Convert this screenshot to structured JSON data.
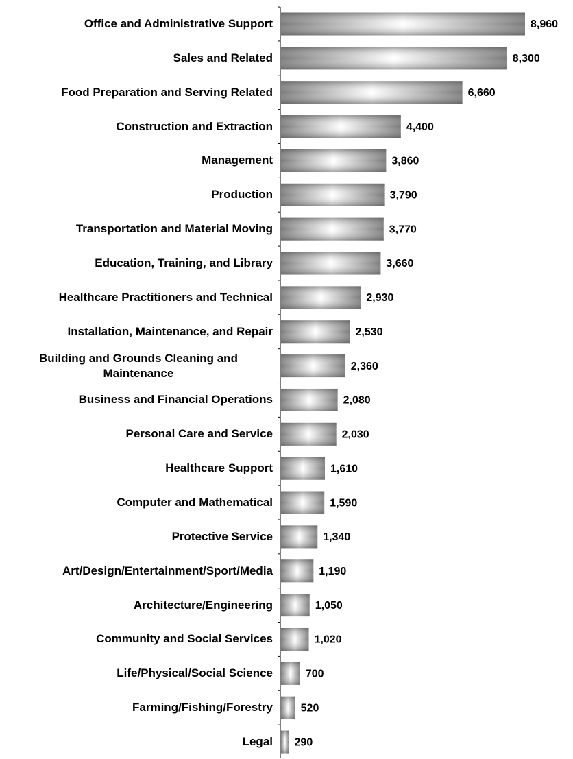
{
  "chart_data": {
    "type": "bar",
    "orientation": "horizontal",
    "categories": [
      "Office and Administrative Support",
      "Sales and Related",
      "Food Preparation and Serving Related",
      "Construction and Extraction",
      "Management",
      "Production",
      "Transportation and Material Moving",
      "Education, Training, and Library",
      "Healthcare Practitioners and Technical",
      "Installation, Maintenance, and Repair",
      "Building and Grounds Cleaning and Maintenance",
      "Business and Financial Operations",
      "Personal Care and Service",
      "Healthcare Support",
      "Computer and Mathematical",
      "Protective Service",
      "Art/Design/Entertainment/Sport/Media",
      "Architecture/Engineering",
      "Community and Social Services",
      "Life/Physical/Social Science",
      "Farming/Fishing/Forestry",
      "Legal"
    ],
    "values": [
      8960,
      8300,
      6660,
      4400,
      3860,
      3790,
      3770,
      3660,
      2930,
      2530,
      2360,
      2080,
      2030,
      1610,
      1590,
      1340,
      1190,
      1050,
      1020,
      700,
      520,
      290
    ],
    "value_labels": [
      "8,960",
      "8,300",
      "6,660",
      "4,400",
      "3,860",
      "3,790",
      "3,770",
      "3,660",
      "2,930",
      "2,530",
      "2,360",
      "2,080",
      "2,030",
      "1,610",
      "1,590",
      "1,340",
      "1,190",
      "1,050",
      "1,020",
      "700",
      "520",
      "290"
    ],
    "color": "#7f7f7f"
  }
}
